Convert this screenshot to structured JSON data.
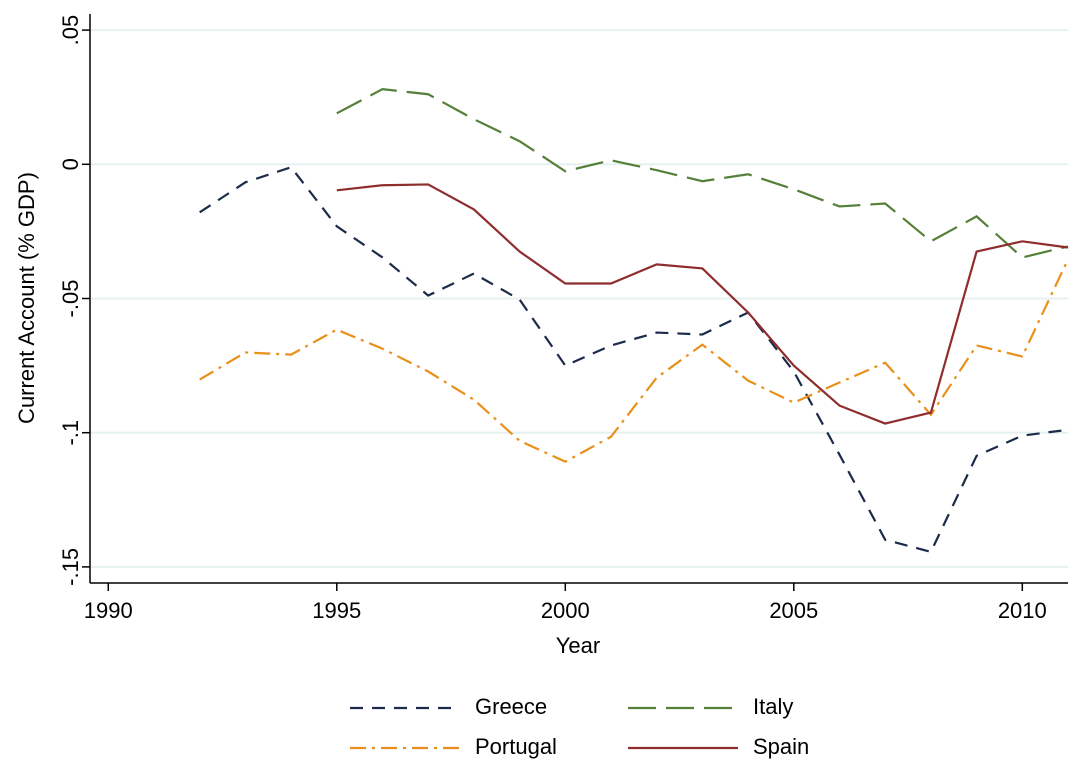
{
  "chart_data": {
    "type": "line",
    "xlabel": "Year",
    "ylabel": "Current Account (% GDP)",
    "xlim": [
      1989.6,
      2011
    ],
    "xticks": [
      1990,
      1995,
      2000,
      2005,
      2010
    ],
    "ylim": [
      -0.156,
      0.056
    ],
    "yticks": [
      {
        "value": -0.15,
        "label": "-.15"
      },
      {
        "value": -0.1,
        "label": "-.1"
      },
      {
        "value": -0.05,
        "label": "-.05"
      },
      0,
      {
        "value": 0.05,
        "label": ".05"
      }
    ],
    "grid": true,
    "legend": "bottom",
    "series": [
      {
        "name": "Greece",
        "color": "#1c2b4a",
        "x": [
          1992,
          1993,
          1994,
          1995,
          1996,
          1997,
          1998,
          1999,
          2000,
          2001,
          2002,
          2003,
          2004,
          2005,
          2006,
          2007,
          2008,
          2009,
          2010,
          2011
        ],
        "values": [
          -0.0179,
          -0.0067,
          -0.0011,
          -0.0231,
          -0.0347,
          -0.0489,
          -0.0407,
          -0.0504,
          -0.075,
          -0.0675,
          -0.0627,
          -0.0634,
          -0.0552,
          -0.0772,
          -0.1082,
          -0.1399,
          -0.1444,
          -0.1086,
          -0.1011,
          -0.0989
        ]
      },
      {
        "name": "Italy",
        "color": "#55803a",
        "x": [
          1995,
          1996,
          1997,
          1998,
          1999,
          2000,
          2001,
          2002,
          2003,
          2004,
          2005,
          2006,
          2007,
          2008,
          2009,
          2010,
          2011
        ],
        "values": [
          0.019,
          0.028,
          0.0261,
          0.0168,
          0.0086,
          -0.0026,
          0.0015,
          -0.0022,
          -0.0063,
          -0.0037,
          -0.0093,
          -0.0157,
          -0.0146,
          -0.0287,
          -0.0194,
          -0.0347,
          -0.0306
        ]
      },
      {
        "name": "Portugal",
        "color": "#e8901a",
        "x": [
          1992,
          1993,
          1994,
          1995,
          1996,
          1997,
          1998,
          1999,
          2000,
          2001,
          2002,
          2003,
          2004,
          2005,
          2006,
          2007,
          2008,
          2009,
          2010,
          2011
        ],
        "values": [
          -0.0802,
          -0.0701,
          -0.0709,
          -0.0616,
          -0.0687,
          -0.0772,
          -0.0877,
          -0.103,
          -0.1108,
          -0.1015,
          -0.0795,
          -0.0672,
          -0.0806,
          -0.0888,
          -0.0813,
          -0.0739,
          -0.0933,
          -0.0675,
          -0.0716,
          -0.0354
        ]
      },
      {
        "name": "Spain",
        "color": "#8f2d2d",
        "x": [
          1995,
          1996,
          1997,
          1998,
          1999,
          2000,
          2001,
          2002,
          2003,
          2004,
          2005,
          2006,
          2007,
          2008,
          2009,
          2010,
          2011
        ],
        "values": [
          -0.0097,
          -0.0078,
          -0.0075,
          -0.0168,
          -0.0325,
          -0.0444,
          -0.0444,
          -0.0373,
          -0.0388,
          -0.0552,
          -0.075,
          -0.0899,
          -0.0966,
          -0.0925,
          -0.0325,
          -0.0287,
          -0.031
        ]
      }
    ]
  }
}
